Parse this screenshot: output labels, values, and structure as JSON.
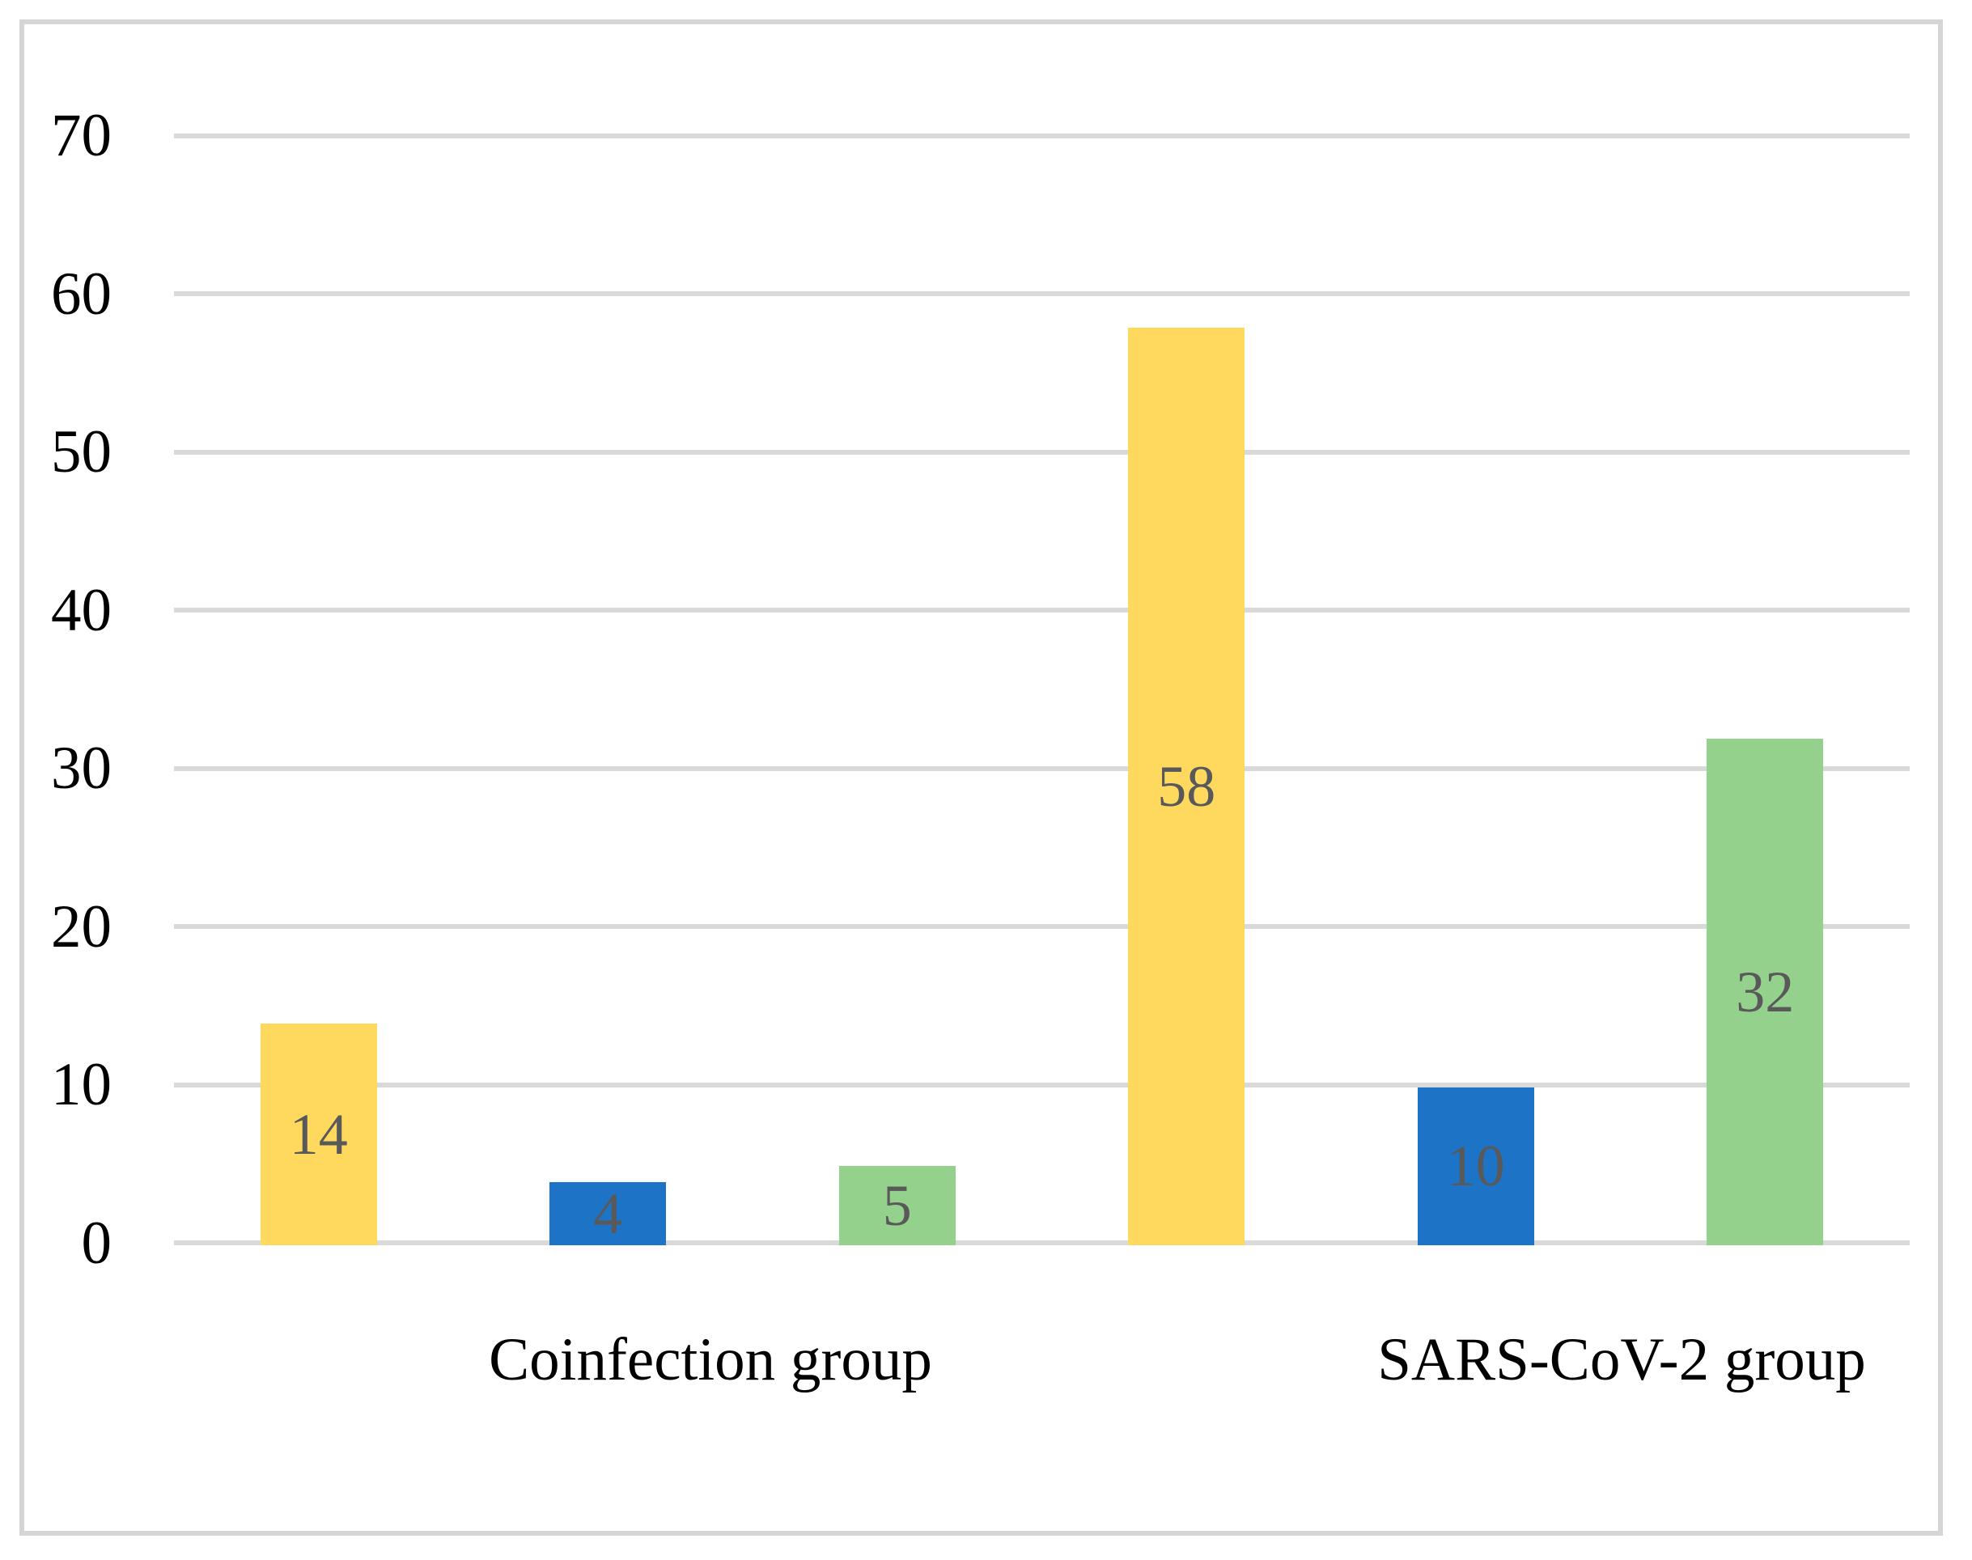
{
  "figure": {
    "background": "#FFFFFF",
    "frame_color": "#D5D5D5"
  },
  "chart_data": {
    "type": "bar",
    "title": "",
    "xlabel": "",
    "ylabel": "",
    "categories": [
      "Coinfection group",
      "SARS-CoV-2 group"
    ],
    "series": [
      {
        "name": "yellow",
        "color": "#FFD95E",
        "values": [
          14,
          58
        ]
      },
      {
        "name": "blue",
        "color": "#1D74C7",
        "values": [
          4,
          10
        ]
      },
      {
        "name": "green",
        "color": "#94D18C",
        "values": [
          5,
          32
        ]
      }
    ],
    "ylim": [
      0,
      70
    ],
    "ytick_labels": [
      "0",
      "10",
      "20",
      "30",
      "40",
      "50",
      "60",
      "70"
    ],
    "grid": true,
    "gridline_color": "#D9D9D9",
    "legend_position": "none",
    "data_labels": {
      "show": true,
      "position": "center",
      "color": "#595959"
    },
    "axis_text_color": "#000000"
  }
}
